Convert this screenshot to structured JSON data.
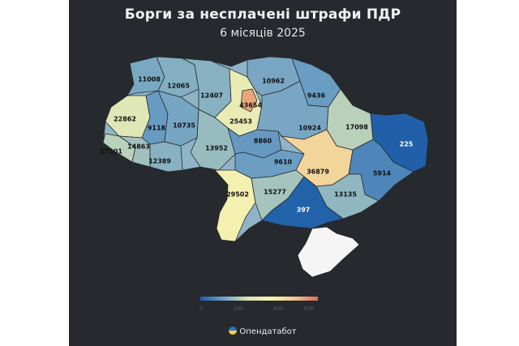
{
  "title": "Борги за несплачені штрафи ПДР",
  "subtitle": "6 місяців 2025",
  "colors": {
    "background": "#26292d",
    "crimea": "#f5f5f5",
    "scale": [
      "#1f5fa8",
      "#6fa1c4",
      "#d7e3b8",
      "#f6f2b0",
      "#f0c890",
      "#dd6a5a"
    ]
  },
  "chart_data": {
    "type": "choropleth",
    "regions": [
      {
        "name": "Волинська",
        "value": 11008
      },
      {
        "name": "Рівненська",
        "value": 12065
      },
      {
        "name": "Житомирська",
        "value": 12407
      },
      {
        "name": "Київ",
        "value": 43654
      },
      {
        "name": "Київська",
        "value": 25453
      },
      {
        "name": "Чернігівська",
        "value": 10962
      },
      {
        "name": "Сумська",
        "value": 9436
      },
      {
        "name": "Львівська",
        "value": 22862
      },
      {
        "name": "Тернопільська",
        "value": 9118
      },
      {
        "name": "Хмельницька",
        "value": 10735
      },
      {
        "name": "Вінницька",
        "value": 13952
      },
      {
        "name": "Черкаська",
        "value": 8860
      },
      {
        "name": "Полтавська",
        "value": 10924
      },
      {
        "name": "Харківська",
        "value": 17098
      },
      {
        "name": "Луганська",
        "value": 225
      },
      {
        "name": "Закарпатська",
        "value": 17201
      },
      {
        "name": "Івано-Франківська",
        "value": 14863
      },
      {
        "name": "Чернівецька",
        "value": 12389
      },
      {
        "name": "Кіровоградська",
        "value": 9610
      },
      {
        "name": "Дніпропетровська",
        "value": 36879
      },
      {
        "name": "Донецька",
        "value": 5914
      },
      {
        "name": "Одеська",
        "value": 29502
      },
      {
        "name": "Миколаївська",
        "value": 15277
      },
      {
        "name": "Запорізька",
        "value": 13135
      },
      {
        "name": "Херсонська",
        "value": 397
      }
    ],
    "scale_min": 0,
    "scale_max": 50000
  },
  "legend": {
    "ticks": [
      "0",
      "20k",
      "40k",
      "60k"
    ]
  },
  "brand": "Опендатабот"
}
